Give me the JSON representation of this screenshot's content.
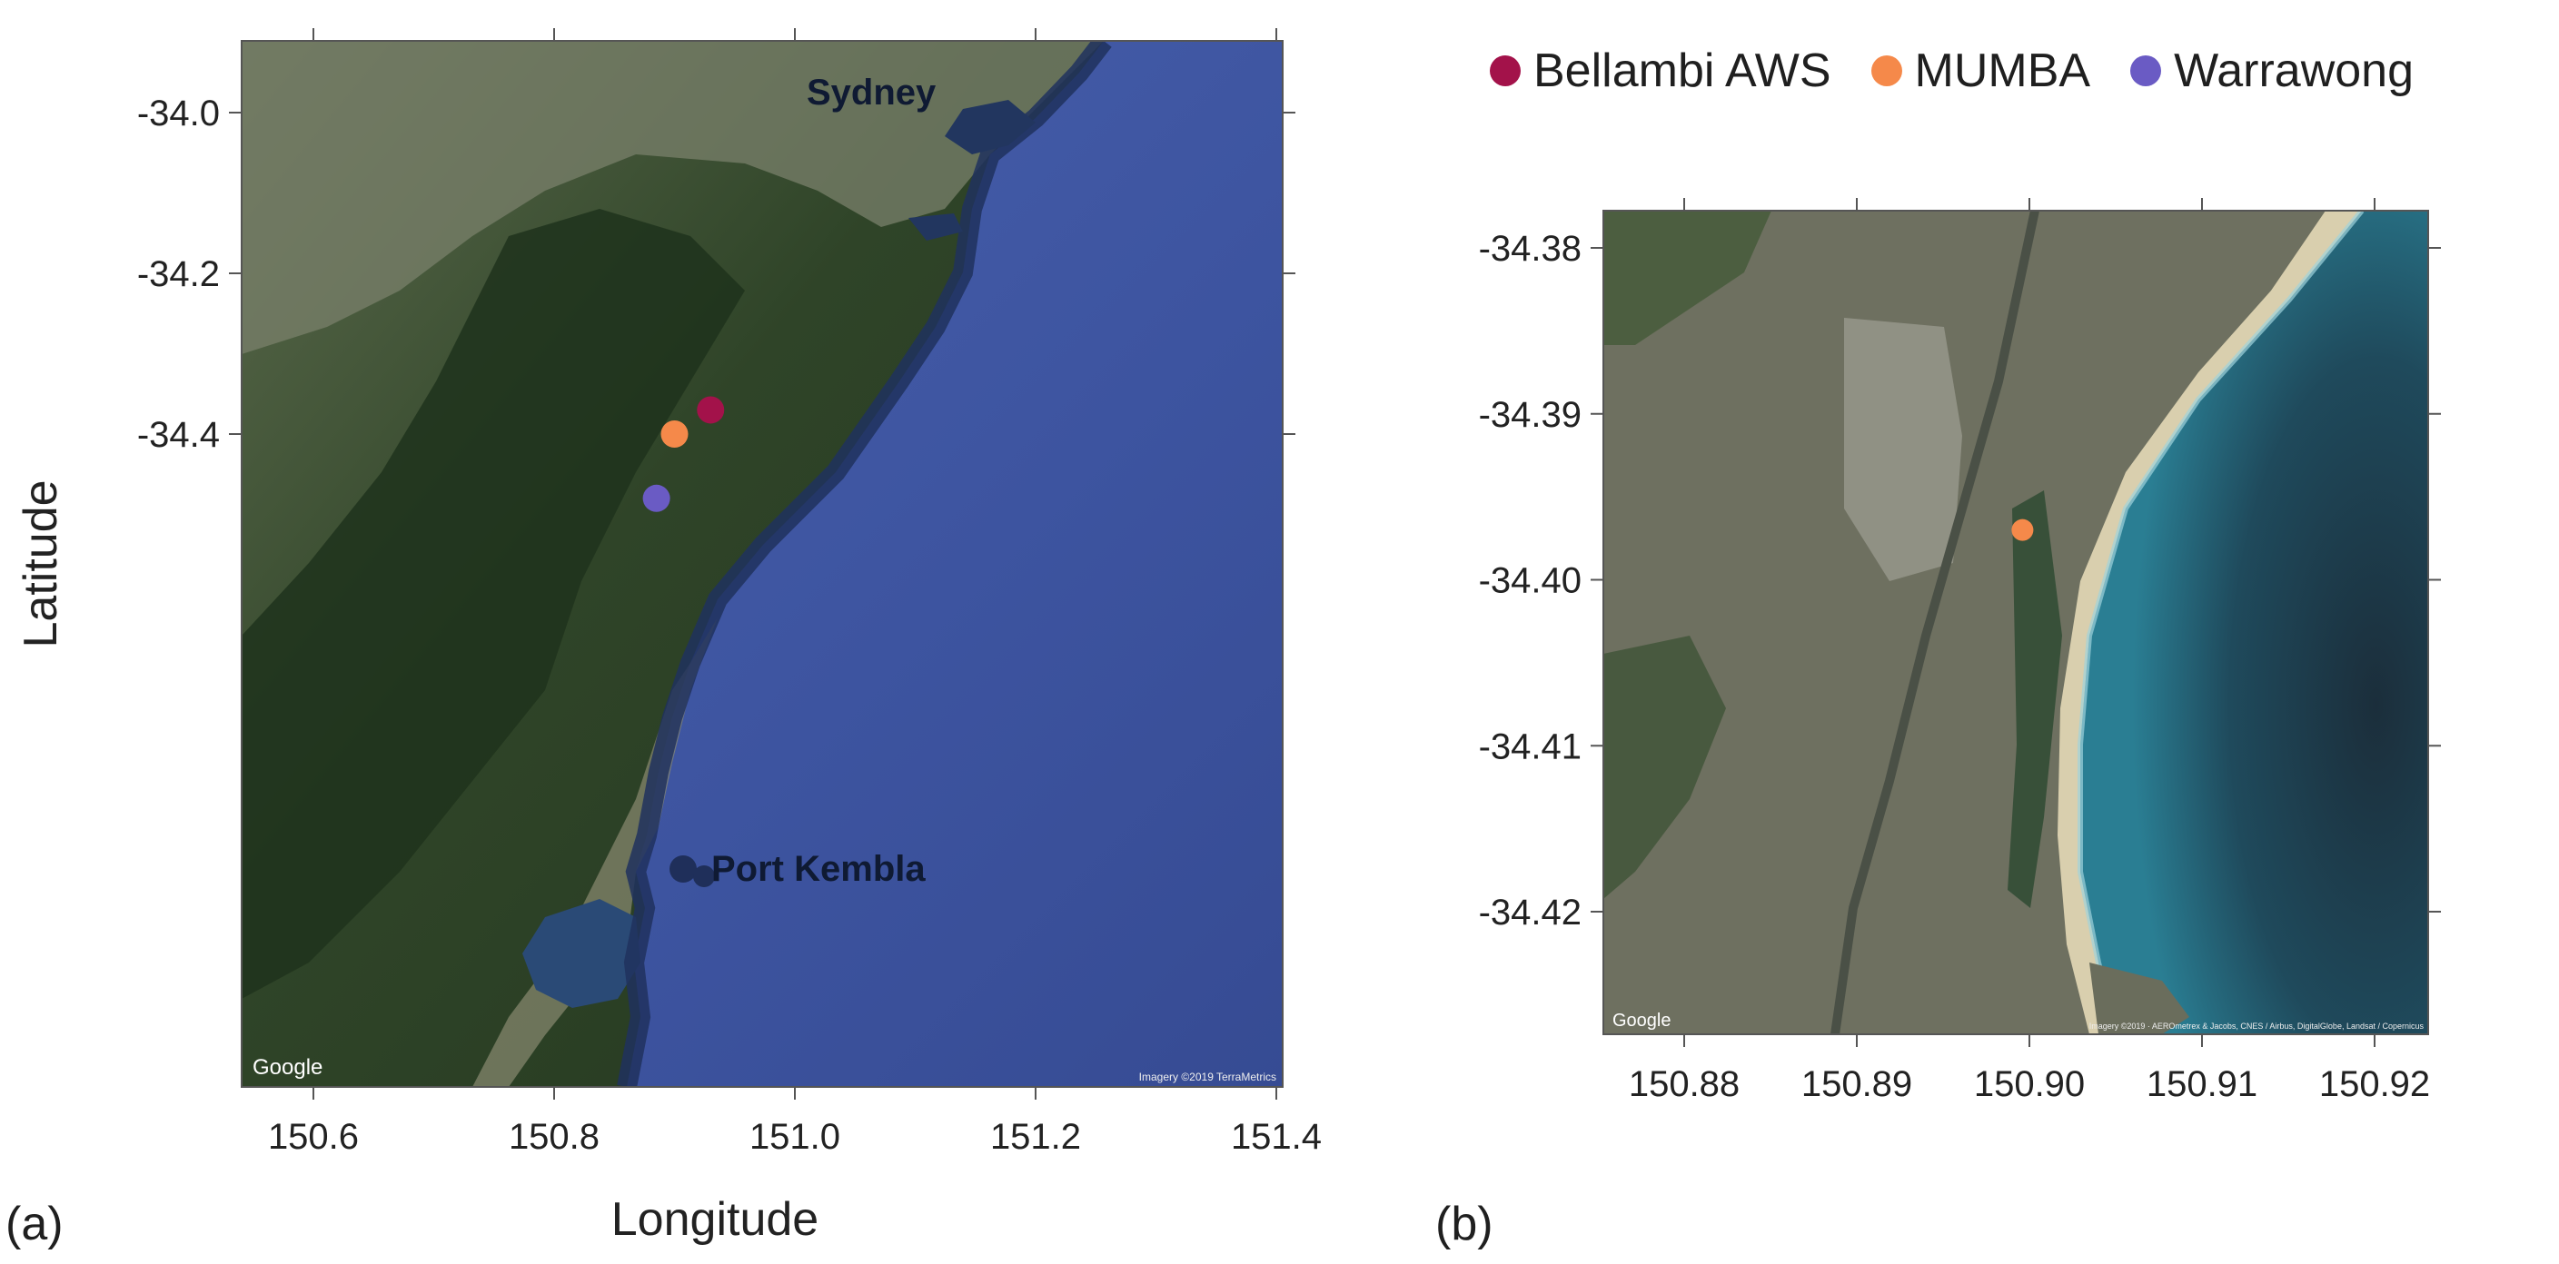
{
  "colors": {
    "bellambi": "#a3124a",
    "mumba": "#f5894a",
    "warrawong": "#6a5bc4",
    "ocean": "#3f56a4",
    "land_dark": "#233a22",
    "land_mid": "#3f5531",
    "land_light": "#7b8066"
  },
  "legend": [
    {
      "label": "Bellambi AWS",
      "color_key": "bellambi"
    },
    {
      "label": "MUMBA",
      "color_key": "mumba"
    },
    {
      "label": "Warrawong",
      "color_key": "warrawong"
    }
  ],
  "panel_a": {
    "label": "(a)",
    "xlabel": "Longitude",
    "ylabel": "Latitude",
    "x_ticks": [
      "150.6",
      "150.8",
      "151.0",
      "151.2",
      "151.4"
    ],
    "y_ticks": [
      "-34.0",
      "-34.2",
      "-34.4"
    ],
    "place_labels": [
      "Sydney",
      "Port Kembla"
    ],
    "attribution_logo": "Google",
    "attribution": "Imagery ©2019 TerraMetrics",
    "stations": [
      {
        "name": "Bellambi AWS",
        "lon": 150.93,
        "lat": -34.37,
        "color_key": "bellambi"
      },
      {
        "name": "MUMBA",
        "lon": 150.9,
        "lat": -34.4,
        "color_key": "mumba"
      },
      {
        "name": "Warrawong",
        "lon": 150.885,
        "lat": -34.48,
        "color_key": "warrawong"
      }
    ]
  },
  "panel_b": {
    "label": "(b)",
    "x_ticks": [
      "150.88",
      "150.89",
      "150.90",
      "150.91",
      "150.92"
    ],
    "y_ticks": [
      "-34.38",
      "-34.39",
      "-34.40",
      "-34.41",
      "-34.42"
    ],
    "attribution_logo": "Google",
    "attribution": "Imagery ©2019 · AEROmetrex & Jacobs, CNES / Airbus, DigitalGlobe, Landsat / Copernicus",
    "stations": [
      {
        "name": "MUMBA",
        "lon": 150.8996,
        "lat": -34.397,
        "color_key": "mumba"
      }
    ]
  }
}
